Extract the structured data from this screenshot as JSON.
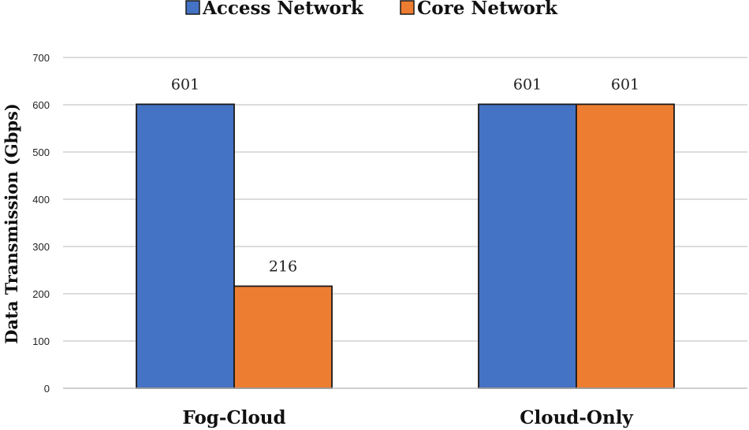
{
  "chart_data": {
    "type": "bar",
    "categories": [
      "Fog-Cloud",
      "Cloud-Only"
    ],
    "series": [
      {
        "name": "Access Network",
        "values": [
          601,
          601
        ],
        "color": "#4472C4"
      },
      {
        "name": "Core Network",
        "values": [
          216,
          601
        ],
        "color": "#ED7D31"
      }
    ],
    "title": "",
    "xlabel": "",
    "ylabel": "Data Transmission (Gbps)",
    "ylim": [
      0,
      700
    ],
    "yticks": [
      0,
      100,
      200,
      300,
      400,
      500,
      600,
      700
    ],
    "grid": true,
    "legend_position": "top-center",
    "data_labels": true
  }
}
